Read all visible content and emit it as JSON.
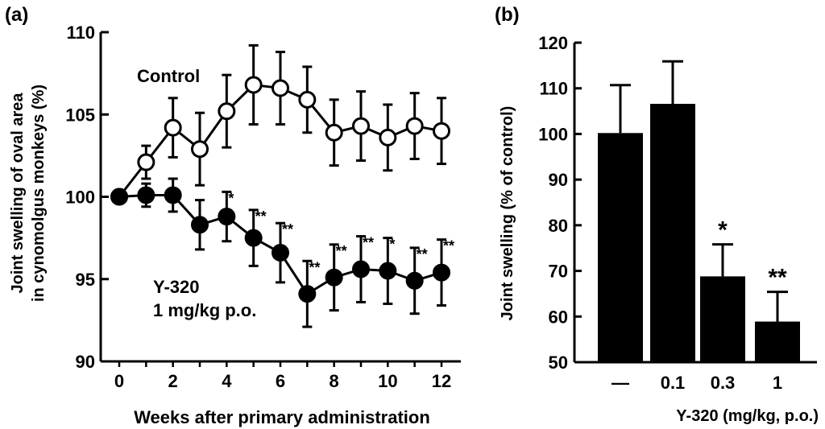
{
  "chart_data": [
    {
      "panel": "(a)",
      "type": "line",
      "xlabel": "Weeks after primary administration",
      "ylabel_line1": "Joint swelling of oval area",
      "ylabel_line2": "in cynomolgus  monkeys (%)",
      "xlim": [
        0,
        12
      ],
      "ylim": [
        90,
        110
      ],
      "xticks": [
        0,
        2,
        4,
        6,
        8,
        10,
        12
      ],
      "yticks": [
        90,
        95,
        100,
        105,
        110
      ],
      "series": [
        {
          "name": "Control",
          "marker": "open-circle",
          "x": [
            0,
            1,
            2,
            3,
            4,
            5,
            6,
            7,
            8,
            9,
            10,
            11,
            12
          ],
          "y": [
            100.0,
            102.1,
            104.2,
            102.9,
            105.2,
            106.8,
            106.6,
            105.9,
            103.9,
            104.3,
            103.6,
            104.3,
            104.0
          ],
          "err": [
            0,
            1.0,
            1.8,
            2.2,
            2.2,
            2.4,
            2.2,
            2.0,
            2.0,
            2.1,
            2.0,
            2.0,
            2.0
          ],
          "annotations": [
            "",
            "",
            "",
            "",
            "",
            "",
            "",
            "",
            "",
            "",
            "",
            "",
            ""
          ]
        },
        {
          "name_line1": "Y-320",
          "name_line2": "1 mg/kg p.o.",
          "marker": "filled-circle",
          "x": [
            0,
            1,
            2,
            3,
            4,
            5,
            6,
            7,
            8,
            9,
            10,
            11,
            12
          ],
          "y": [
            100.0,
            100.1,
            100.1,
            98.3,
            98.8,
            97.5,
            96.6,
            94.1,
            95.1,
            95.6,
            95.5,
            94.9,
            95.4
          ],
          "err": [
            0,
            0.7,
            1.0,
            1.5,
            1.5,
            1.7,
            1.8,
            2.0,
            2.0,
            2.0,
            2.0,
            2.0,
            2.0
          ],
          "annotations": [
            "",
            "",
            "",
            "",
            "*",
            "**",
            "**",
            "**",
            "**",
            "**",
            "*",
            "**",
            "**"
          ]
        }
      ]
    },
    {
      "panel": "(b)",
      "type": "bar",
      "xlabel": "Y-320 (mg/kg, p.o.)",
      "ylabel": "Joint swelling (% of control)",
      "categories": [
        "—",
        "0.1",
        "0.3",
        "1"
      ],
      "values": [
        100.2,
        106.6,
        68.8,
        58.9
      ],
      "errors": [
        10.5,
        9.3,
        7.0,
        6.5
      ],
      "annotations": [
        "",
        "",
        "*",
        "**"
      ],
      "ylim": [
        50,
        120
      ],
      "yticks": [
        50,
        60,
        70,
        80,
        90,
        100,
        110,
        120
      ]
    }
  ]
}
